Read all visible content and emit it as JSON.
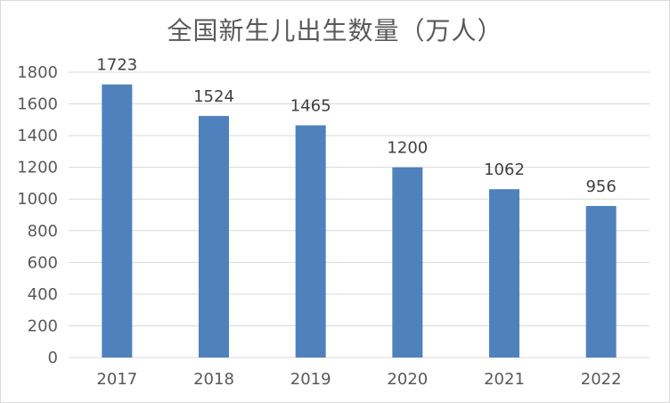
{
  "chart_data": {
    "type": "bar",
    "title": "全国新生儿出生数量（万人）",
    "categories": [
      "2017",
      "2018",
      "2019",
      "2020",
      "2021",
      "2022"
    ],
    "series": [
      {
        "values": [
          1723,
          1524,
          1465,
          1200,
          1062,
          956
        ]
      }
    ],
    "ylim": [
      0,
      1800
    ],
    "yticks": [
      0,
      200,
      400,
      600,
      800,
      1000,
      1200,
      1400,
      1600,
      1800
    ],
    "grid": true,
    "legend": "none",
    "data_labels": true,
    "colors": {
      "bar": "#4f81bd",
      "grid": "#d9d9d9",
      "text": "#595959"
    }
  }
}
